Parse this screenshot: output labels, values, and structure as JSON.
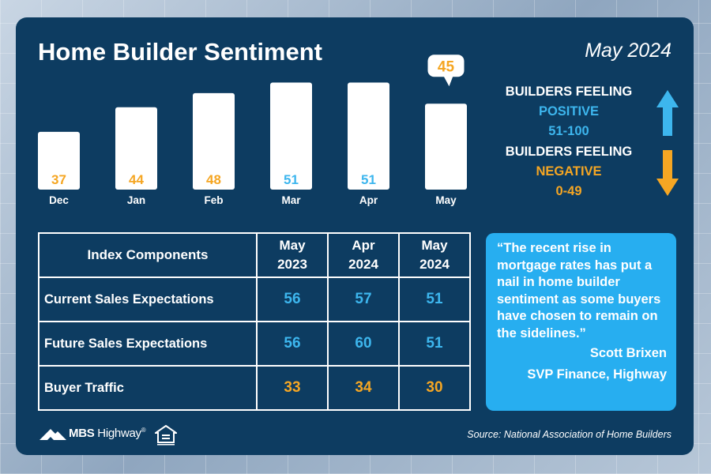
{
  "header": {
    "title": "Home Builder Sentiment",
    "date": "May 2024"
  },
  "chart_data": {
    "type": "bar",
    "categories": [
      "Dec",
      "Jan",
      "Feb",
      "Mar",
      "Apr",
      "May"
    ],
    "values": [
      37,
      44,
      48,
      51,
      51,
      45
    ],
    "value_colors": [
      "#f5a623",
      "#f5a623",
      "#f5a623",
      "#3db6ee",
      "#3db6ee",
      "#f5a623"
    ],
    "callout_index": 5,
    "ylim": [
      0,
      100
    ]
  },
  "legend": {
    "positive_line1": "BUILDERS FEELING",
    "positive_line2": "POSITIVE",
    "positive_range": "51-100",
    "negative_line1": "BUILDERS FEELING",
    "negative_line2": "NEGATIVE",
    "negative_range": "0-49",
    "positive_color": "#3db6ee",
    "negative_color": "#f5a623",
    "positive_icon": "arrow-up-icon",
    "negative_icon": "arrow-down-icon"
  },
  "table": {
    "header": {
      "label": "Index Components",
      "cols": [
        {
          "l1": "May",
          "l2": "2023"
        },
        {
          "l1": "Apr",
          "l2": "2024"
        },
        {
          "l1": "May",
          "l2": "2024"
        }
      ]
    },
    "rows": [
      {
        "label": "Current Sales Expectations",
        "values": [
          "56",
          "57",
          "51"
        ],
        "color": "blue"
      },
      {
        "label": "Future Sales Expectations",
        "values": [
          "56",
          "60",
          "51"
        ],
        "color": "blue"
      },
      {
        "label": "Buyer Traffic",
        "values": [
          "33",
          "34",
          "30"
        ],
        "color": "orange"
      }
    ]
  },
  "quote": {
    "text": "“The recent rise in mortgage rates has put a nail in home builder sentiment as some buyers have chosen to remain on the sidelines.”",
    "author": "Scott Brixen",
    "role": "SVP Finance, Highway"
  },
  "footer": {
    "brand_bold": "MBS",
    "brand_light": " Highway",
    "brand_mark": "®",
    "source": "Source: National Association of Home Builders",
    "logo_icon": "mountain-logo-icon",
    "eho_icon": "equal-housing-icon"
  }
}
